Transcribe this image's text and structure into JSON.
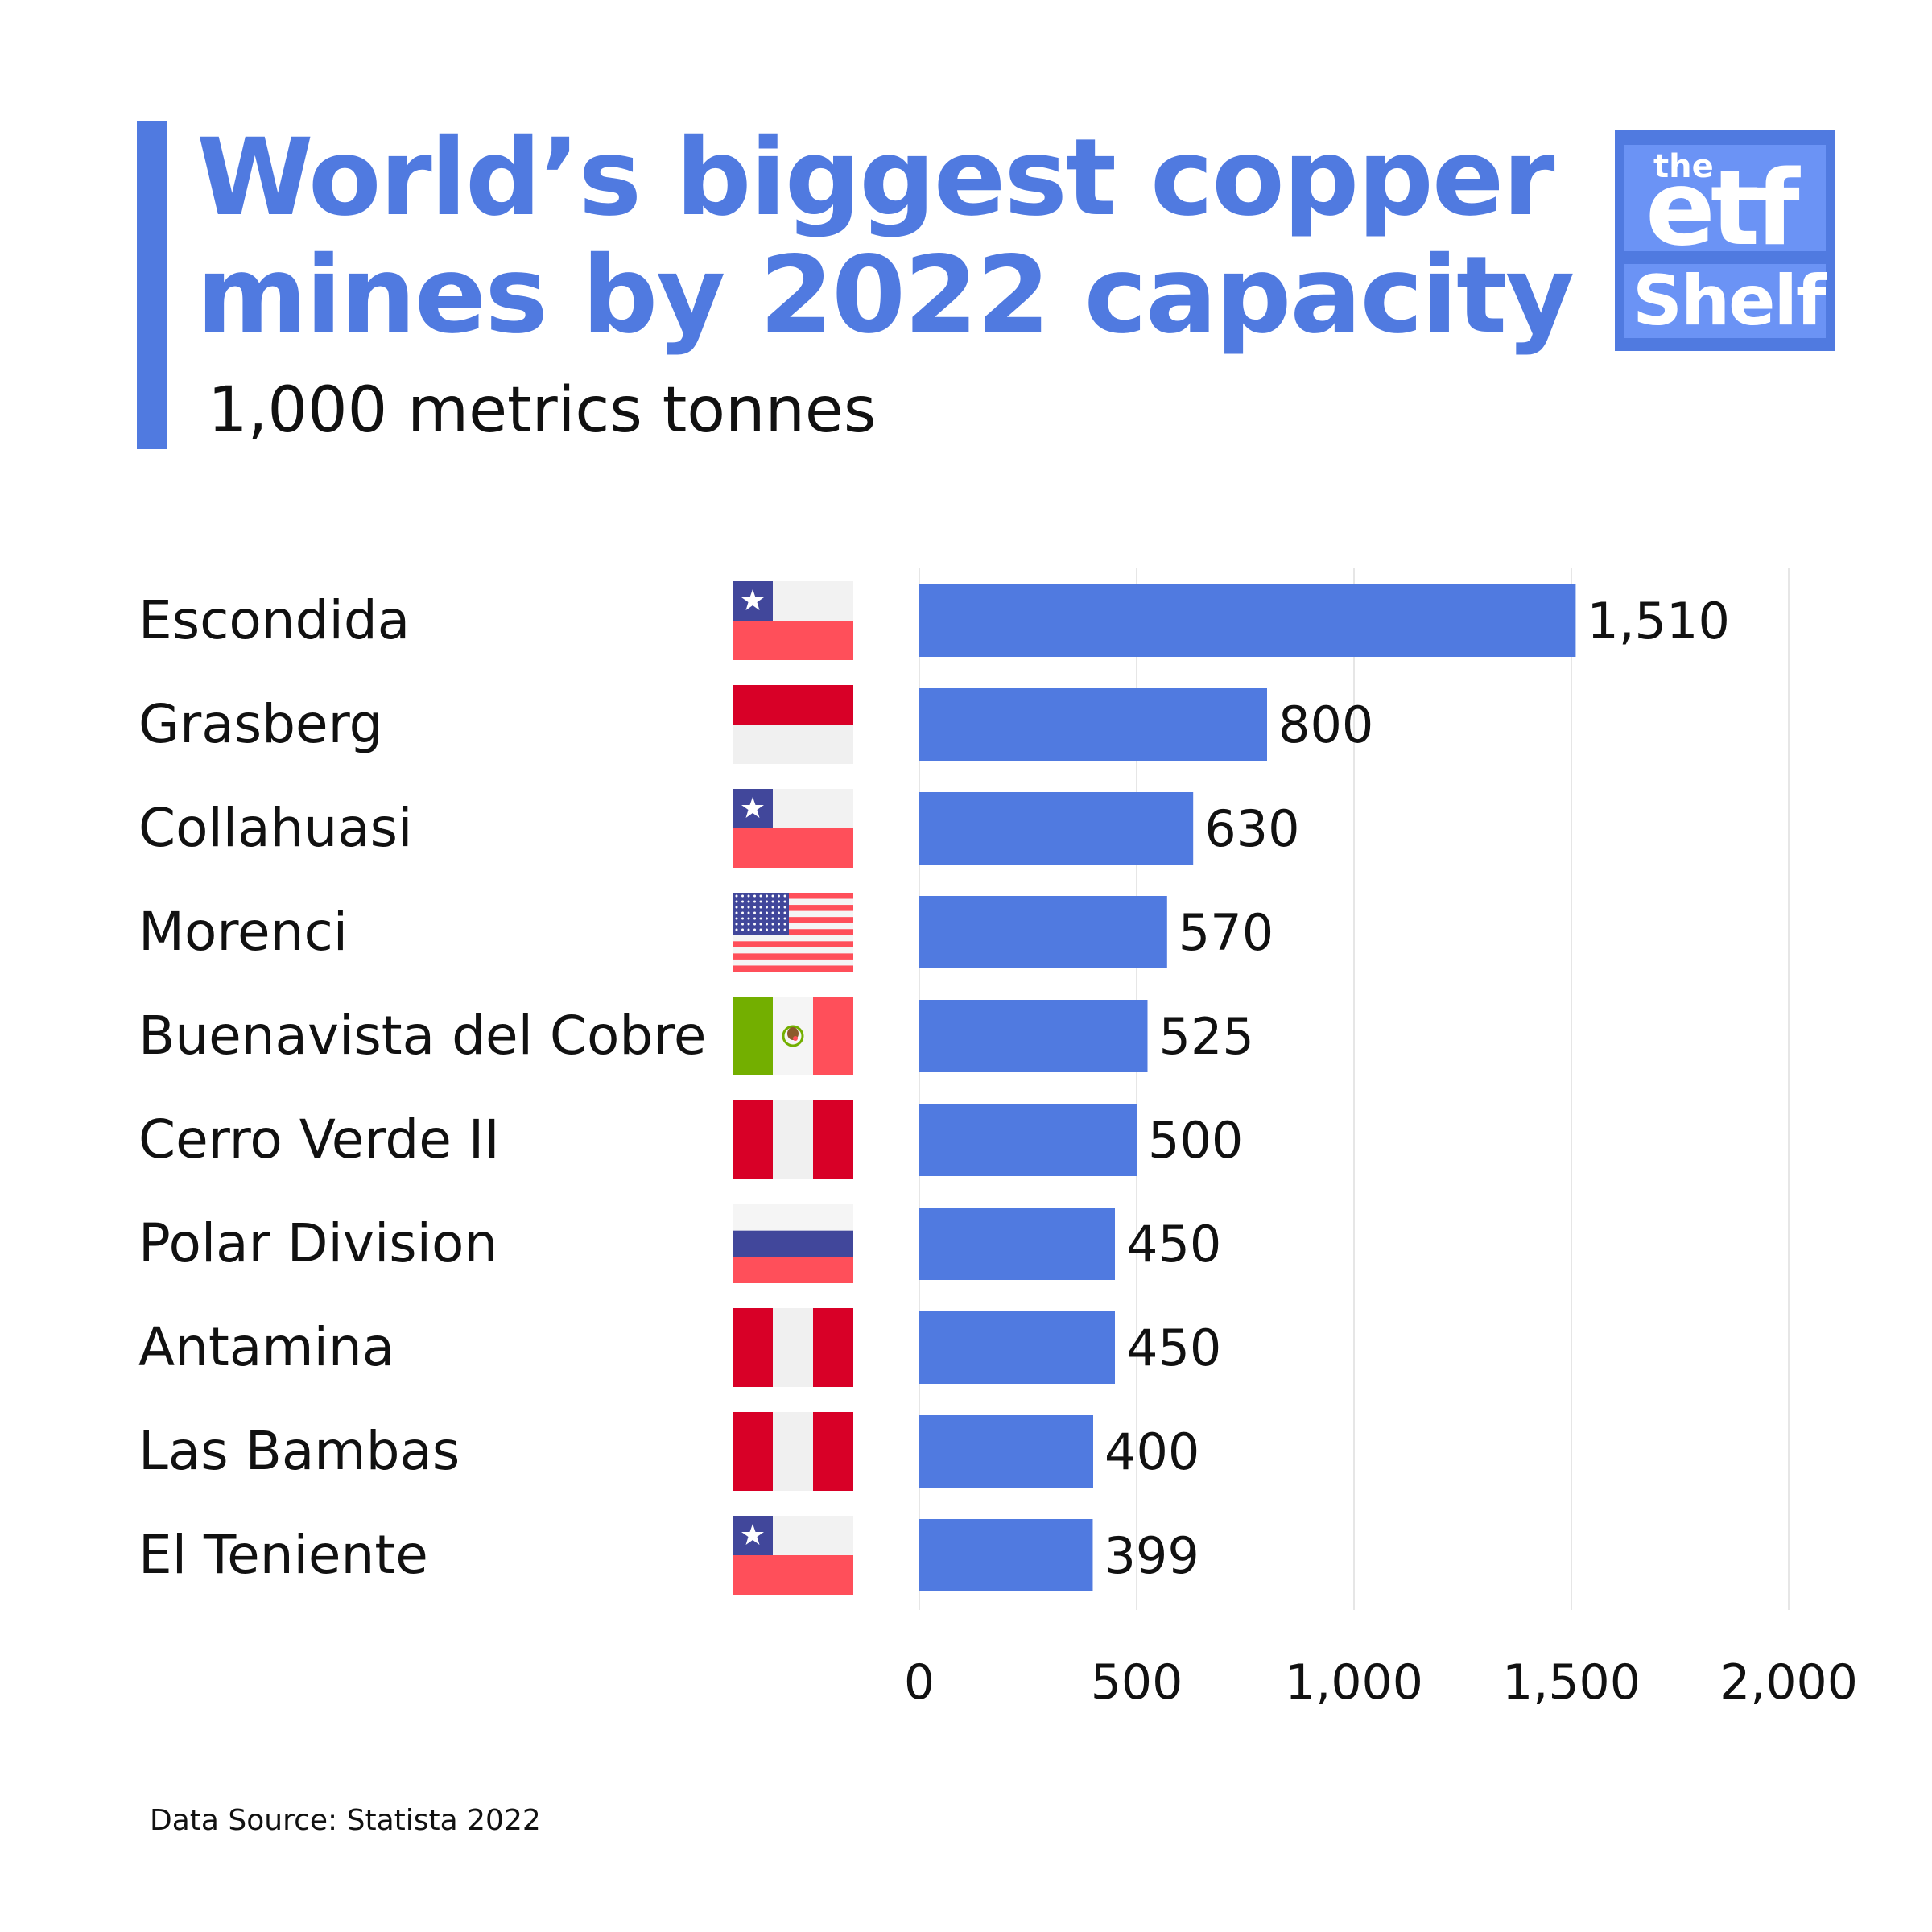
{
  "header": {
    "title_line1": "World’s biggest copper",
    "title_line2": "mines by 2022 capacity",
    "subtitle": "1,000 metrics tonnes"
  },
  "logo": {
    "the": "the",
    "etf": "etf",
    "shelf": "Shelf"
  },
  "footer": {
    "source": "Data Source: Statista 2022"
  },
  "colors": {
    "accent": "#507AE0",
    "bar": "#507AE0",
    "grid": "#E6E6E6",
    "text": "#111111"
  },
  "chart_data": {
    "type": "bar",
    "orientation": "horizontal",
    "title": "World’s biggest copper mines by 2022 capacity",
    "subtitle": "1,000 metrics tonnes",
    "categories": [
      "Escondida",
      "Grasberg",
      "Collahuasi",
      "Morenci",
      "Buenavista del Cobre",
      "Cerro Verde II",
      "Polar Division",
      "Antamina",
      "Las Bambas",
      "El Teniente"
    ],
    "countries": [
      "chile",
      "indonesia",
      "chile",
      "usa",
      "mexico",
      "peru",
      "russia",
      "peru",
      "peru",
      "chile"
    ],
    "values": [
      1510,
      800,
      630,
      570,
      525,
      500,
      450,
      450,
      400,
      399
    ],
    "value_labels": [
      "1,510",
      "800",
      "630",
      "570",
      "525",
      "500",
      "450",
      "450",
      "400",
      "399"
    ],
    "xlim": [
      0,
      2000
    ],
    "xticks": [
      0,
      500,
      1000,
      1500,
      2000
    ],
    "xtick_labels": [
      "0",
      "500",
      "1,000",
      "1,500",
      "2,000"
    ],
    "grid": true,
    "legend": "none"
  }
}
